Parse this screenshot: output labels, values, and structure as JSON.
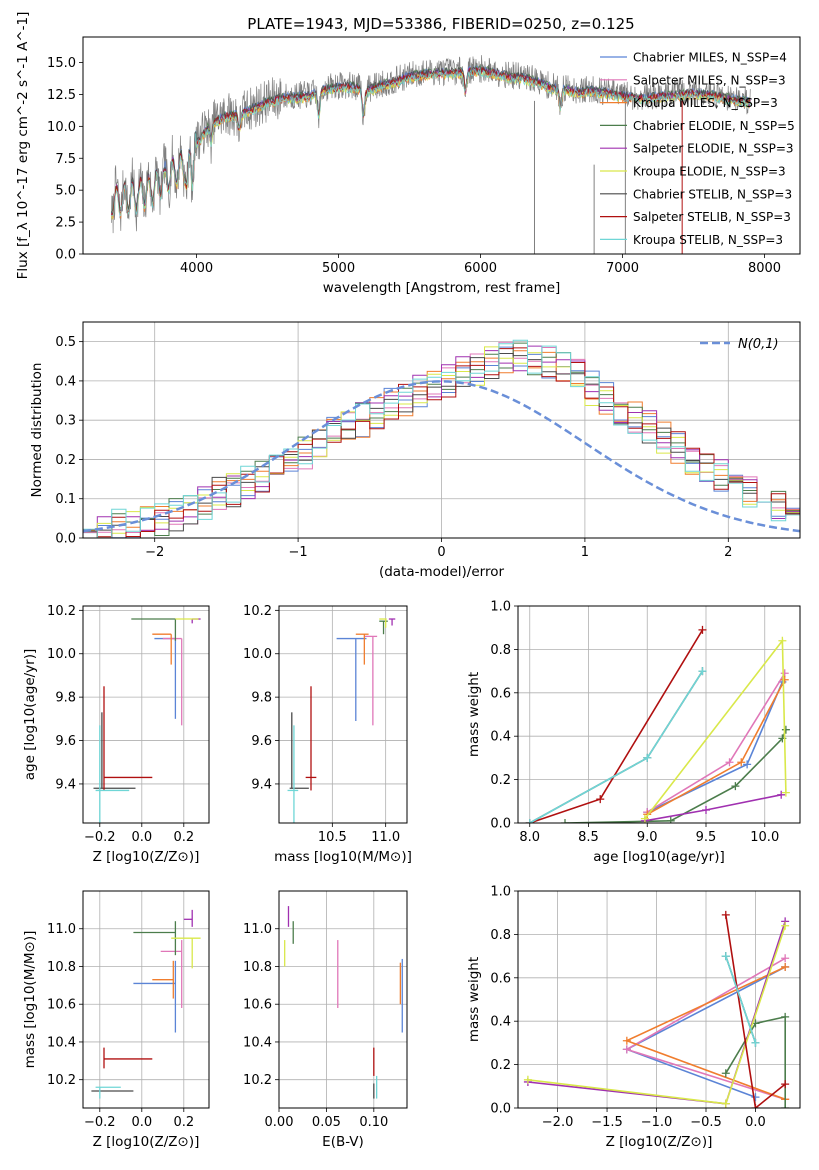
{
  "title": "PLATE=1943, MJD=53386, FIBERID=0250, z=0.125",
  "colors": {
    "chabrier_miles": "#5b84d6",
    "salpeter_miles": "#e077b8",
    "kroupa_miles": "#f07d2e",
    "chabrier_elodie": "#4c7d4c",
    "salpeter_elodie": "#a030b0",
    "kroupa_elodie": "#d9e84a",
    "chabrier_stelib": "#4a4a4a",
    "salpeter_stelib": "#b01010",
    "kroupa_stelib": "#6fd6d6",
    "data_grey": "#808080",
    "normal_curve": "#6a8fd8",
    "grid": "#b0b0b0"
  },
  "chart_data": [
    {
      "id": "spectrum",
      "type": "line",
      "title": "PLATE=1943, MJD=53386, FIBERID=0250, z=0.125",
      "xlabel": "wavelength [Angstrom, rest frame]",
      "ylabel": "Flux [f_λ 10^-17 erg cm^-2 s^-1 A^-1]",
      "xlim": [
        3200,
        8250
      ],
      "ylim": [
        0,
        17
      ],
      "xticks": [
        4000,
        5000,
        6000,
        7000,
        8000
      ],
      "yticks": [
        "0.0",
        "2.5",
        "5.0",
        "7.5",
        "10.0",
        "12.5",
        "15.0"
      ],
      "grid": false,
      "legend_position": "top-right",
      "series": [
        {
          "name": "Chabrier MILES, N_SSP=4"
        },
        {
          "name": "Salpeter MILES, N_SSP=3"
        },
        {
          "name": "Kroupa MILES, N_SSP=3"
        },
        {
          "name": "Chabrier ELODIE, N_SSP=5"
        },
        {
          "name": "Salpeter ELODIE, N_SSP=3"
        },
        {
          "name": "Kroupa ELODIE, N_SSP=3"
        },
        {
          "name": "Chabrier STELIB, N_SSP=3"
        },
        {
          "name": "Salpeter STELIB, N_SSP=3"
        },
        {
          "name": "Kroupa STELIB, N_SSP=3"
        }
      ],
      "continuum": {
        "wavelength": [
          3400,
          3500,
          3600,
          3700,
          3800,
          3900,
          4000,
          4100,
          4200,
          4300,
          4400,
          4500,
          4600,
          4700,
          4800,
          4900,
          5000,
          5100,
          5200,
          5300,
          5400,
          5500,
          5600,
          5700,
          5800,
          5900,
          6000,
          6100,
          6200,
          6300,
          6400,
          6500,
          6600,
          6700,
          6800,
          6900,
          7000,
          7100,
          7200,
          7300,
          7400,
          7500,
          7600,
          7700,
          7800,
          7900
        ],
        "flux": [
          4.2,
          4.5,
          4.8,
          5.3,
          6.2,
          7.0,
          8.8,
          10.3,
          10.9,
          11.0,
          11.5,
          12.0,
          12.3,
          12.4,
          12.5,
          13.0,
          13.2,
          13.2,
          12.9,
          13.3,
          13.6,
          14.0,
          14.2,
          14.3,
          14.3,
          14.4,
          14.5,
          14.3,
          14.0,
          13.9,
          13.6,
          13.1,
          13.0,
          12.8,
          12.9,
          12.7,
          12.5,
          12.3,
          12.4,
          12.5,
          12.6,
          12.7,
          12.6,
          12.4,
          12.2,
          12.0
        ]
      }
    },
    {
      "id": "residuals",
      "type": "histogram",
      "xlabel": "(data-model)/error",
      "ylabel": "Normed distribution",
      "xlim": [
        -2.5,
        2.5
      ],
      "ylim": [
        0,
        0.55
      ],
      "xticks": [
        "−2",
        "−1",
        "0",
        "1",
        "2"
      ],
      "yticks": [
        "0.0",
        "0.1",
        "0.2",
        "0.3",
        "0.4",
        "0.5"
      ],
      "grid": true,
      "legend_position": "top-right",
      "normal_label": "N(0,1)",
      "bin_width": 0.1,
      "bin_start": -2.5,
      "reference_envelope": [
        0.02,
        0.02,
        0.03,
        0.03,
        0.04,
        0.05,
        0.06,
        0.07,
        0.09,
        0.11,
        0.12,
        0.14,
        0.16,
        0.18,
        0.2,
        0.22,
        0.25,
        0.27,
        0.28,
        0.3,
        0.32,
        0.34,
        0.35,
        0.37,
        0.38,
        0.4,
        0.42,
        0.43,
        0.45,
        0.46,
        0.47,
        0.46,
        0.45,
        0.43,
        0.41,
        0.38,
        0.36,
        0.33,
        0.31,
        0.28,
        0.26,
        0.23,
        0.2,
        0.18,
        0.16,
        0.14,
        0.12,
        0.1,
        0.08,
        0.07
      ]
    },
    {
      "id": "age-vs-Z",
      "type": "scatter",
      "xlabel": "Z [log10(Z/Z⊙)]",
      "ylabel": "age  [log10(age/yr)]",
      "xlim": [
        -0.28,
        0.32
      ],
      "ylim": [
        9.22,
        10.22
      ],
      "xticks": [
        "−0.2",
        "0.0",
        "0.2"
      ],
      "yticks": [
        "9.4",
        "9.6",
        "9.8",
        "10.0",
        "10.2"
      ],
      "grid": true,
      "points": [
        {
          "x": 0.16,
          "y": 10.07,
          "xerr": [
            0.1,
            0.0
          ],
          "yerr": [
            0.37,
            0.0
          ],
          "color": "#5b84d6"
        },
        {
          "x": 0.19,
          "y": 10.07,
          "xerr": [
            0.09,
            0.0
          ],
          "yerr": [
            0.4,
            0.0
          ],
          "color": "#e077b8"
        },
        {
          "x": 0.14,
          "y": 10.09,
          "xerr": [
            0.09,
            0.0
          ],
          "yerr": [
            0.14,
            0.0
          ],
          "color": "#f07d2e"
        },
        {
          "x": 0.16,
          "y": 10.16,
          "xerr": [
            0.21,
            0.0
          ],
          "yerr": [
            0.1,
            0.0
          ],
          "color": "#4c7d4c"
        },
        {
          "x": 0.24,
          "y": 10.16,
          "xerr": [
            0.0,
            0.04
          ],
          "yerr": [
            0.02,
            0.0
          ],
          "color": "#a030b0"
        },
        {
          "x": 0.24,
          "y": 10.16,
          "xerr": [
            0.08,
            0.03
          ],
          "yerr": [
            0.0,
            0.0
          ],
          "color": "#d9e84a"
        },
        {
          "x": -0.19,
          "y": 9.38,
          "xerr": [
            0.04,
            0.16
          ],
          "yerr": [
            0.0,
            0.35
          ],
          "color": "#4a4a4a"
        },
        {
          "x": -0.18,
          "y": 9.43,
          "xerr": [
            0.0,
            0.23
          ],
          "yerr": [
            0.06,
            0.42
          ],
          "color": "#b01010"
        },
        {
          "x": -0.2,
          "y": 9.37,
          "xerr": [
            0.02,
            0.14
          ],
          "yerr": [
            0.15,
            0.3
          ],
          "color": "#6fd6d6"
        }
      ]
    },
    {
      "id": "age-vs-mass",
      "type": "scatter",
      "xlabel": "mass [log10(M/M⊙)]",
      "ylabel": "",
      "xlim": [
        10.0,
        11.2
      ],
      "ylim": [
        9.22,
        10.22
      ],
      "xticks": [
        "10.5",
        "11.0"
      ],
      "yticks": [
        "9.4",
        "9.6",
        "9.8",
        "10.0",
        "10.2"
      ],
      "grid": true,
      "points": [
        {
          "x": 10.72,
          "y": 10.07,
          "xerr": [
            0.18,
            0.1
          ],
          "yerr": [
            0.38,
            0.0
          ],
          "color": "#5b84d6"
        },
        {
          "x": 10.88,
          "y": 10.08,
          "xerr": [
            0.08,
            0.04
          ],
          "yerr": [
            0.41,
            0.0
          ],
          "color": "#e077b8"
        },
        {
          "x": 10.8,
          "y": 10.09,
          "xerr": [
            0.08,
            0.04
          ],
          "yerr": [
            0.14,
            0.0
          ],
          "color": "#f07d2e"
        },
        {
          "x": 10.98,
          "y": 10.15,
          "xerr": [
            0.04,
            0.04
          ],
          "yerr": [
            0.06,
            0.0
          ],
          "color": "#4c7d4c"
        },
        {
          "x": 11.06,
          "y": 10.16,
          "xerr": [
            0.03,
            0.03
          ],
          "yerr": [
            0.03,
            0.0
          ],
          "color": "#a030b0"
        },
        {
          "x": 11.0,
          "y": 10.16,
          "xerr": [
            0.06,
            0.01
          ],
          "yerr": [
            0.04,
            0.0
          ],
          "color": "#d9e84a"
        },
        {
          "x": 10.12,
          "y": 9.38,
          "xerr": [
            0.02,
            0.16
          ],
          "yerr": [
            0.0,
            0.35
          ],
          "color": "#4a4a4a"
        },
        {
          "x": 10.3,
          "y": 9.43,
          "xerr": [
            0.05,
            0.05
          ],
          "yerr": [
            0.06,
            0.42
          ],
          "color": "#b01010"
        },
        {
          "x": 10.14,
          "y": 9.37,
          "xerr": [
            0.06,
            0.04
          ],
          "yerr": [
            0.15,
            0.3
          ],
          "color": "#6fd6d6"
        }
      ]
    },
    {
      "id": "massweight-vs-age",
      "type": "line",
      "xlabel": "age  [log10(age/yr)]",
      "ylabel": "mass weight",
      "xlim": [
        7.9,
        10.3
      ],
      "ylim": [
        0,
        1
      ],
      "xticks": [
        "8.0",
        "8.5",
        "9.0",
        "9.5",
        "10.0"
      ],
      "yticks": [
        "0.0",
        "0.2",
        "0.4",
        "0.6",
        "0.8",
        "1.0"
      ],
      "grid": true,
      "series": [
        {
          "color": "#5b84d6",
          "x": [
            9.0,
            9.85,
            10.15
          ],
          "y": [
            0.05,
            0.27,
            0.65
          ]
        },
        {
          "color": "#e077b8",
          "x": [
            9.0,
            9.7,
            10.17
          ],
          "y": [
            0.05,
            0.28,
            0.69
          ]
        },
        {
          "color": "#f07d2e",
          "x": [
            9.0,
            9.8,
            10.17
          ],
          "y": [
            0.04,
            0.28,
            0.66
          ]
        },
        {
          "color": "#4c7d4c",
          "x": [
            8.3,
            9.2,
            9.75,
            10.15,
            10.18
          ],
          "y": [
            0.0,
            0.01,
            0.17,
            0.39,
            0.43
          ]
        },
        {
          "color": "#a030b0",
          "x": [
            8.98,
            9.5,
            10.14
          ],
          "y": [
            0.01,
            0.06,
            0.13
          ]
        },
        {
          "color": "#d9e84a",
          "x": [
            8.98,
            10.15,
            10.18
          ],
          "y": [
            0.02,
            0.84,
            0.14
          ]
        },
        {
          "color": "#4a4a4a",
          "x": [
            8.0,
            9.0,
            9.47
          ],
          "y": [
            0.0,
            0.3,
            0.7
          ]
        },
        {
          "color": "#b01010",
          "x": [
            8.0,
            8.6,
            9.47
          ],
          "y": [
            0.0,
            0.11,
            0.89
          ]
        },
        {
          "color": "#6fd6d6",
          "x": [
            8.0,
            9.0,
            9.47
          ],
          "y": [
            0.0,
            0.3,
            0.7
          ]
        }
      ]
    },
    {
      "id": "mass-vs-Z",
      "type": "scatter",
      "xlabel": "Z [log10(Z/Z⊙)]",
      "ylabel": "mass [log10(M/M⊙)]",
      "xlim": [
        -0.28,
        0.32
      ],
      "ylim": [
        10.05,
        11.2
      ],
      "xticks": [
        "−0.2",
        "0.0",
        "0.2"
      ],
      "yticks": [
        "10.2",
        "10.4",
        "10.6",
        "10.8",
        "11.0"
      ],
      "grid": true,
      "points": [
        {
          "x": 0.16,
          "y": 10.71,
          "xerr": [
            0.2,
            0.0
          ],
          "yerr": [
            0.26,
            0.12
          ],
          "color": "#5b84d6"
        },
        {
          "x": 0.19,
          "y": 10.88,
          "xerr": [
            0.1,
            0.0
          ],
          "yerr": [
            0.3,
            0.06
          ],
          "color": "#e077b8"
        },
        {
          "x": 0.15,
          "y": 10.73,
          "xerr": [
            0.1,
            0.0
          ],
          "yerr": [
            0.1,
            0.1
          ],
          "color": "#f07d2e"
        },
        {
          "x": 0.16,
          "y": 10.98,
          "xerr": [
            0.2,
            0.0
          ],
          "yerr": [
            0.12,
            0.06
          ],
          "color": "#4c7d4c"
        },
        {
          "x": 0.24,
          "y": 11.05,
          "xerr": [
            0.04,
            0.0
          ],
          "yerr": [
            0.04,
            0.05
          ],
          "color": "#a030b0"
        },
        {
          "x": 0.24,
          "y": 10.95,
          "xerr": [
            0.1,
            0.04
          ],
          "yerr": [
            0.16,
            0.0
          ],
          "color": "#d9e84a"
        },
        {
          "x": -0.2,
          "y": 10.14,
          "xerr": [
            0.04,
            0.16
          ],
          "yerr": [
            0.0,
            0.0
          ],
          "color": "#4a4a4a"
        },
        {
          "x": -0.18,
          "y": 10.31,
          "xerr": [
            0.0,
            0.23
          ],
          "yerr": [
            0.05,
            0.06
          ],
          "color": "#b01010"
        },
        {
          "x": -0.2,
          "y": 10.16,
          "xerr": [
            0.02,
            0.1
          ],
          "yerr": [
            0.06,
            0.0
          ],
          "color": "#6fd6d6"
        }
      ]
    },
    {
      "id": "mass-vs-EBV",
      "type": "scatter",
      "xlabel": "E(B-V)",
      "ylabel": "",
      "xlim": [
        0.0,
        0.135
      ],
      "ylim": [
        10.05,
        11.2
      ],
      "xticks": [
        "0.00",
        "0.05",
        "0.10"
      ],
      "yticks": [
        "10.2",
        "10.4",
        "10.6",
        "10.8",
        "11.0"
      ],
      "grid": true,
      "points": [
        {
          "x": 0.13,
          "y": 10.72,
          "yerr": [
            0.27,
            0.12
          ],
          "color": "#5b84d6"
        },
        {
          "x": 0.062,
          "y": 10.88,
          "yerr": [
            0.3,
            0.06
          ],
          "color": "#e077b8"
        },
        {
          "x": 0.128,
          "y": 10.72,
          "yerr": [
            0.12,
            0.1
          ],
          "color": "#f07d2e"
        },
        {
          "x": 0.015,
          "y": 10.98,
          "yerr": [
            0.06,
            0.06
          ],
          "color": "#4c7d4c"
        },
        {
          "x": 0.01,
          "y": 11.06,
          "yerr": [
            0.05,
            0.06
          ],
          "color": "#a030b0"
        },
        {
          "x": 0.006,
          "y": 10.87,
          "yerr": [
            0.07,
            0.07
          ],
          "color": "#d9e84a"
        },
        {
          "x": 0.1,
          "y": 10.14,
          "yerr": [
            0.04,
            0.04
          ],
          "color": "#4a4a4a"
        },
        {
          "x": 0.1,
          "y": 10.28,
          "yerr": [
            0.06,
            0.09
          ],
          "color": "#b01010"
        },
        {
          "x": 0.103,
          "y": 10.16,
          "yerr": [
            0.06,
            0.06
          ],
          "color": "#6fd6d6"
        }
      ]
    },
    {
      "id": "massweight-vs-Z",
      "type": "line",
      "xlabel": "Z [log10(Z/Z⊙)]",
      "ylabel": "mass weight",
      "xlim": [
        -2.4,
        0.45
      ],
      "ylim": [
        0,
        1
      ],
      "xticks": [
        "−2.0",
        "−1.5",
        "−1.0",
        "−0.5",
        "0.0"
      ],
      "yticks": [
        "0.0",
        "0.2",
        "0.4",
        "0.6",
        "0.8",
        "1.0"
      ],
      "grid": true,
      "series": [
        {
          "color": "#5b84d6",
          "x": [
            0.3,
            -1.3,
            0.0
          ],
          "y": [
            0.65,
            0.27,
            0.05
          ]
        },
        {
          "color": "#e077b8",
          "x": [
            0.3,
            -1.3,
            0.3
          ],
          "y": [
            0.69,
            0.27,
            0.04
          ]
        },
        {
          "color": "#f07d2e",
          "x": [
            0.3,
            -1.3,
            0.3
          ],
          "y": [
            0.65,
            0.31,
            0.04
          ]
        },
        {
          "color": "#4c7d4c",
          "x": [
            -0.3,
            0.0,
            0.3,
            0.3
          ],
          "y": [
            0.16,
            0.39,
            0.42,
            0.0
          ]
        },
        {
          "color": "#a030b0",
          "x": [
            -2.3,
            -0.3,
            0.3
          ],
          "y": [
            0.12,
            0.02,
            0.86
          ]
        },
        {
          "color": "#d9e84a",
          "x": [
            -2.3,
            -0.3,
            0.3
          ],
          "y": [
            0.13,
            0.02,
            0.84
          ]
        },
        {
          "color": "#4a4a4a",
          "x": [
            -0.3,
            0.0
          ],
          "y": [
            0.7,
            0.3
          ]
        },
        {
          "color": "#b01010",
          "x": [
            -0.3,
            0.0,
            0.3
          ],
          "y": [
            0.89,
            0.0,
            0.11
          ]
        },
        {
          "color": "#6fd6d6",
          "x": [
            -0.3,
            0.0
          ],
          "y": [
            0.7,
            0.3
          ]
        }
      ]
    }
  ]
}
